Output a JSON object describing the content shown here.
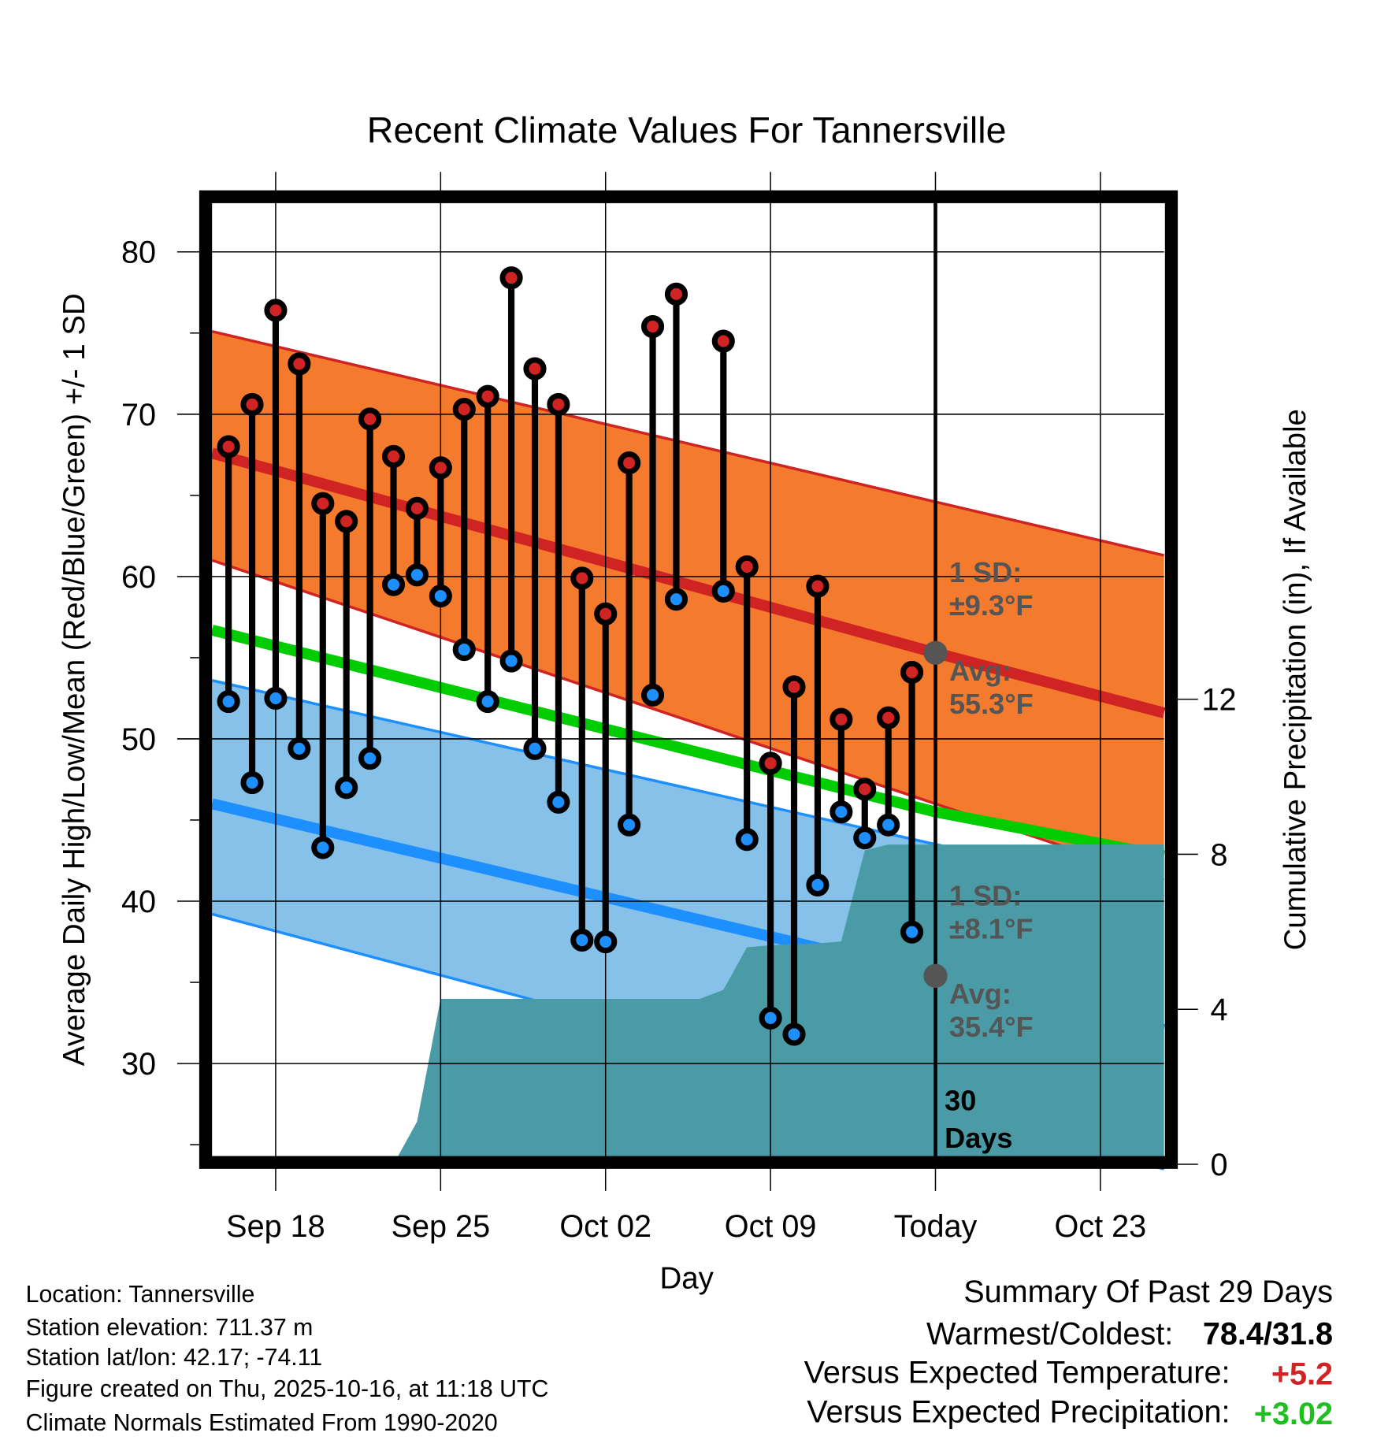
{
  "chart_data": {
    "type": "line",
    "title": "Recent Climate Values For Tannersville",
    "xlabel": "Day",
    "ylabel": "Average Daily High/Low/Mean (Red/Blue/Green) +/- 1 SD",
    "y2label": "Cumulative Precipitation (in), If Available",
    "x_unit": "days relative to Today (Oct 16)",
    "xlim": [
      -30.7,
      9.7
    ],
    "ylim": [
      24.3,
      83.0
    ],
    "y2lim": [
      0,
      24.8
    ],
    "grid": true,
    "x_ticks": [
      {
        "value": -28,
        "label": "Sep 18"
      },
      {
        "value": -21,
        "label": "Sep 25"
      },
      {
        "value": -14,
        "label": "Oct 02"
      },
      {
        "value": -7,
        "label": "Oct 09"
      },
      {
        "value": 0,
        "label": "Today"
      },
      {
        "value": 7,
        "label": "Oct 23"
      }
    ],
    "y_ticks": [
      {
        "value": 30,
        "label": "30"
      },
      {
        "value": 40,
        "label": "40"
      },
      {
        "value": 50,
        "label": "50"
      },
      {
        "value": 60,
        "label": "60"
      },
      {
        "value": 70,
        "label": "70"
      },
      {
        "value": 80,
        "label": "80"
      }
    ],
    "y_minor_ticks": [
      25,
      35,
      45,
      55,
      65,
      75
    ],
    "y2_ticks": [
      {
        "value": 0,
        "label": "0"
      },
      {
        "value": 4,
        "label": "4"
      },
      {
        "value": 8,
        "label": "8"
      },
      {
        "value": 12,
        "label": "12"
      }
    ],
    "observed": {
      "days": [
        -30,
        -29,
        -28,
        -27,
        -26,
        -25,
        -24,
        -23,
        -22,
        -21,
        -20,
        -19,
        -18,
        -17,
        -16,
        -15,
        -14,
        -13,
        -12,
        -11,
        -9,
        -8,
        -7,
        -6,
        -5,
        -4,
        -3,
        -2,
        -1
      ],
      "high": [
        68.0,
        70.6,
        76.4,
        73.1,
        64.5,
        63.4,
        69.7,
        67.4,
        64.2,
        66.7,
        70.3,
        71.1,
        78.4,
        72.8,
        70.6,
        59.9,
        57.7,
        67.0,
        75.4,
        77.4,
        74.5,
        60.6,
        48.5,
        53.2,
        59.4,
        51.2,
        46.9,
        51.3,
        54.1
      ],
      "low": [
        52.3,
        47.3,
        52.5,
        49.4,
        43.3,
        47.0,
        48.8,
        59.5,
        60.1,
        58.8,
        55.5,
        52.3,
        54.8,
        49.4,
        46.1,
        37.6,
        37.5,
        44.7,
        52.7,
        58.6,
        59.1,
        43.8,
        32.8,
        31.8,
        41.0,
        45.5,
        43.9,
        44.7,
        38.1
      ]
    },
    "normals": {
      "days": [
        -30.7,
        0,
        9.7
      ],
      "high_avg": [
        67.6,
        55.3,
        51.6
      ],
      "high_upper": [
        75.1,
        64.6,
        61.3
      ],
      "high_lower": [
        61.0,
        46.0,
        41.3
      ],
      "mean_avg": [
        56.7,
        45.5,
        42.8
      ],
      "low_avg": [
        46.0,
        35.4,
        32.1
      ],
      "low_upper": [
        53.6,
        43.5,
        40.3
      ],
      "low_lower": [
        39.2,
        27.3,
        23.5
      ]
    },
    "precipitation": {
      "days": [
        -30.7,
        -23,
        -22,
        -21,
        -11,
        -10,
        -9,
        -8,
        -7,
        -6,
        -5,
        -4,
        -3,
        -2,
        -1,
        9.7
      ],
      "cumulative_in": [
        0,
        0,
        1.1,
        4.27,
        4.27,
        4.27,
        4.5,
        5.6,
        5.65,
        5.68,
        5.7,
        5.75,
        8.1,
        8.25,
        8.25,
        8.25
      ]
    },
    "annotations": {
      "high_sd_label": "1 SD:",
      "high_sd_value": "±9.3°F",
      "high_avg_label": "Avg:",
      "high_avg_value": "55.3°F",
      "low_sd_label": "1 SD:",
      "low_sd_value": "±8.1°F",
      "low_avg_label": "Avg:",
      "low_avg_value": "35.4°F",
      "window_number": "30",
      "window_unit": "Days",
      "high_avg_marker": 55.3,
      "low_avg_marker": 35.4
    }
  },
  "footer": {
    "location": "Location: Tannersville",
    "elevation": "Station elevation: 711.37 m",
    "latlon": "Station lat/lon: 42.17; -74.11",
    "created": "Figure created on Thu, 2025-10-16, at 11:18 UTC",
    "normals": "Climate Normals Estimated From 1990-2020"
  },
  "summary": {
    "title": "Summary Of Past 29 Days",
    "warm_cold_label": "Warmest/Coldest:",
    "warm_cold_value": "78.4/31.8",
    "temp_label": "Versus Expected Temperature:",
    "temp_value": "+5.2",
    "precip_label": "Versus Expected Precipitation:",
    "precip_value": "+3.02"
  },
  "colors": {
    "high_band": "#F47A2E",
    "high_line": "#D02323",
    "mean_line": "#00CC00",
    "low_band": "#85C1E8",
    "low_line": "#1E8FFF",
    "precip": "#4A9BA5",
    "annotation": "#555555",
    "temp_anomaly": "#D02323",
    "precip_anomaly": "#1FBF1F"
  }
}
